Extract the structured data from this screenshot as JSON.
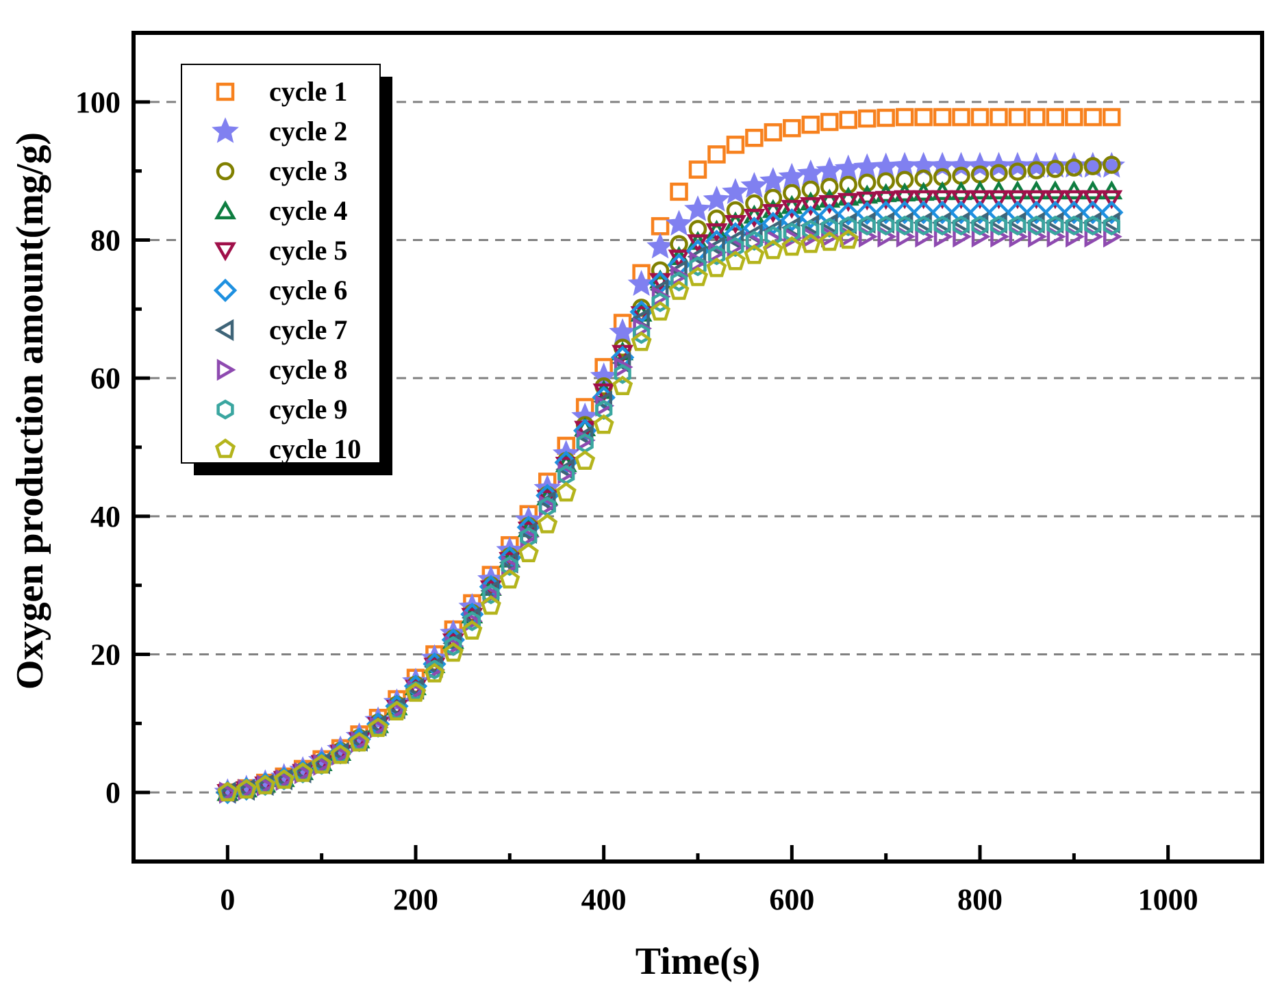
{
  "chart_data": {
    "type": "scatter",
    "title": "",
    "xlabel": "Time(s)",
    "ylabel": "Oxygen production amount(mg/g)",
    "xlim": [
      -100,
      1100
    ],
    "ylim": [
      -10,
      110
    ],
    "xticks": [
      0,
      200,
      400,
      600,
      800,
      1000
    ],
    "yticks": [
      0,
      20,
      40,
      60,
      80,
      100
    ],
    "xtick_labels": [
      "0",
      "200",
      "400",
      "600",
      "800",
      "1000"
    ],
    "ytick_labels": [
      "0",
      "20",
      "40",
      "60",
      "80",
      "100"
    ],
    "grid": "horizontal dashed at y ticks",
    "legend_position": "top-left",
    "x": [
      0,
      20,
      40,
      60,
      80,
      100,
      120,
      140,
      160,
      180,
      200,
      220,
      240,
      260,
      280,
      300,
      320,
      340,
      360,
      380,
      400,
      420,
      440,
      460,
      480,
      500,
      520,
      540,
      560,
      580,
      600,
      620,
      640,
      660,
      680,
      700,
      720,
      740,
      760,
      780,
      800,
      820,
      840,
      860,
      880,
      900,
      920,
      940
    ],
    "series": [
      {
        "name": "cycle 1",
        "marker": "square",
        "color": "#F7811E",
        "values": [
          0,
          0.6,
          1.4,
          2.3,
          3.4,
          4.8,
          6.4,
          8.4,
          10.8,
          13.5,
          16.6,
          20.0,
          23.6,
          27.4,
          31.5,
          35.8,
          40.3,
          45.0,
          50.2,
          55.8,
          61.6,
          68.0,
          75.2,
          82.0,
          87.0,
          90.2,
          92.4,
          93.8,
          94.8,
          95.6,
          96.2,
          96.7,
          97.1,
          97.4,
          97.6,
          97.7,
          97.8,
          97.8,
          97.8,
          97.8,
          97.8,
          97.8,
          97.8,
          97.8,
          97.8,
          97.8,
          97.8,
          97.8
        ]
      },
      {
        "name": "cycle 2",
        "marker": "star",
        "color": "#8080F0",
        "values": [
          0,
          0.5,
          1.3,
          2.2,
          3.2,
          4.6,
          6.2,
          8.1,
          10.4,
          13.0,
          16.0,
          19.4,
          23.0,
          26.8,
          30.8,
          35.0,
          39.4,
          44.0,
          49.0,
          54.4,
          60.2,
          66.6,
          73.6,
          79.0,
          82.3,
          84.4,
          85.8,
          86.9,
          87.8,
          88.5,
          89.1,
          89.6,
          90.0,
          90.3,
          90.5,
          90.6,
          90.7,
          90.7,
          90.7,
          90.7,
          90.7,
          90.7,
          90.7,
          90.7,
          90.7,
          90.7,
          90.7,
          90.7
        ]
      },
      {
        "name": "cycle 3",
        "marker": "circle",
        "color": "#808000",
        "values": [
          0,
          0.5,
          1.2,
          2.1,
          3.1,
          4.4,
          6.0,
          7.9,
          10.1,
          12.7,
          15.6,
          18.8,
          22.3,
          26.0,
          30.0,
          34.2,
          38.6,
          43.1,
          48.0,
          53.2,
          58.8,
          64.4,
          70.2,
          75.6,
          79.4,
          81.6,
          83.1,
          84.3,
          85.3,
          86.1,
          86.8,
          87.3,
          87.7,
          88.0,
          88.3,
          88.5,
          88.7,
          88.9,
          89.1,
          89.3,
          89.5,
          89.7,
          89.9,
          90.1,
          90.3,
          90.5,
          90.7,
          90.9
        ]
      },
      {
        "name": "cycle 4",
        "marker": "triangle-up",
        "color": "#0E7D40",
        "values": [
          0,
          0.5,
          1.2,
          2.0,
          3.0,
          4.3,
          5.8,
          7.6,
          9.8,
          12.4,
          15.3,
          18.5,
          22.0,
          25.7,
          29.7,
          33.8,
          38.2,
          42.8,
          47.6,
          52.8,
          58.2,
          63.8,
          69.4,
          74.2,
          77.6,
          79.8,
          81.4,
          82.6,
          83.6,
          84.4,
          85.0,
          85.5,
          85.9,
          86.2,
          86.5,
          86.7,
          86.8,
          86.9,
          87.0,
          87.0,
          87.1,
          87.1,
          87.1,
          87.1,
          87.1,
          87.1,
          87.1,
          87.1
        ]
      },
      {
        "name": "cycle 5",
        "marker": "triangle-down",
        "color": "#A0104A",
        "values": [
          0,
          0.4,
          1.1,
          1.9,
          2.9,
          4.2,
          5.7,
          7.5,
          9.7,
          12.2,
          15.1,
          18.3,
          21.8,
          25.5,
          29.5,
          33.6,
          38.0,
          42.6,
          47.4,
          52.6,
          58.0,
          63.6,
          69.2,
          74.0,
          77.4,
          79.6,
          81.2,
          82.4,
          83.3,
          84.0,
          84.6,
          85.0,
          85.3,
          85.6,
          85.8,
          85.9,
          86.0,
          86.0,
          86.0,
          86.0,
          86.0,
          86.0,
          86.0,
          86.0,
          86.0,
          86.0,
          86.0,
          86.0
        ]
      },
      {
        "name": "cycle 6",
        "marker": "diamond",
        "color": "#1E90E0",
        "values": [
          0,
          0.5,
          1.2,
          2.0,
          3.0,
          4.3,
          5.8,
          7.7,
          9.9,
          12.5,
          15.4,
          18.6,
          22.1,
          25.8,
          29.8,
          34.0,
          38.4,
          43.0,
          47.8,
          52.4,
          57.2,
          63.0,
          69.6,
          73.8,
          76.4,
          78.4,
          79.8,
          80.9,
          81.7,
          82.4,
          82.9,
          83.3,
          83.6,
          83.8,
          83.9,
          84.0,
          84.0,
          84.0,
          84.0,
          84.0,
          84.0,
          84.0,
          84.0,
          84.0,
          84.0,
          84.0,
          84.0,
          84.0
        ]
      },
      {
        "name": "cycle 7",
        "marker": "triangle-left",
        "color": "#3E6478",
        "values": [
          0,
          0.4,
          1.1,
          1.9,
          2.9,
          4.2,
          5.7,
          7.5,
          9.7,
          12.2,
          15.0,
          18.2,
          21.6,
          25.3,
          29.2,
          33.3,
          37.6,
          42.1,
          46.8,
          51.6,
          56.6,
          62.2,
          68.6,
          72.8,
          75.6,
          77.6,
          79.0,
          80.0,
          80.8,
          81.4,
          81.8,
          82.1,
          82.3,
          82.4,
          82.5,
          82.5,
          82.5,
          82.5,
          82.5,
          82.5,
          82.5,
          82.5,
          82.5,
          82.5,
          82.5,
          82.5,
          82.5,
          82.5
        ]
      },
      {
        "name": "cycle 8",
        "marker": "triangle-right",
        "color": "#8E4AB0",
        "values": [
          0,
          0.4,
          1.0,
          1.8,
          2.8,
          4.0,
          5.5,
          7.3,
          9.4,
          11.9,
          14.7,
          17.8,
          21.2,
          24.8,
          28.7,
          32.8,
          37.0,
          41.5,
          46.2,
          51.0,
          56.0,
          61.6,
          67.2,
          71.8,
          74.8,
          76.8,
          78.2,
          79.1,
          79.7,
          80.1,
          80.3,
          80.4,
          80.5,
          80.5,
          80.5,
          80.5,
          80.5,
          80.5,
          80.5,
          80.5,
          80.5,
          80.5,
          80.5,
          80.5,
          80.5,
          80.5,
          80.5,
          80.5
        ]
      },
      {
        "name": "cycle 9",
        "marker": "hexagon",
        "color": "#3AA6A0",
        "values": [
          0,
          0.4,
          1.0,
          1.8,
          2.8,
          4.0,
          5.5,
          7.3,
          9.4,
          11.9,
          14.7,
          17.8,
          21.2,
          24.8,
          28.7,
          32.8,
          37.0,
          41.4,
          46.0,
          50.6,
          55.4,
          60.6,
          66.4,
          71.0,
          74.0,
          76.2,
          77.8,
          79.0,
          79.9,
          80.6,
          81.1,
          81.5,
          81.8,
          82.0,
          82.1,
          82.1,
          82.1,
          82.1,
          82.1,
          82.1,
          82.1,
          82.1,
          82.1,
          82.1,
          82.1,
          82.1,
          82.1,
          82.1
        ]
      },
      {
        "name": "cycle 10",
        "marker": "pentagon",
        "color": "#B4B41C",
        "values": [
          0,
          0.4,
          1.0,
          1.8,
          2.8,
          4.0,
          5.4,
          7.2,
          9.3,
          11.7,
          14.4,
          17.2,
          20.2,
          23.4,
          27.0,
          30.8,
          34.6,
          38.8,
          43.4,
          48.0,
          53.2,
          58.8,
          65.2,
          69.6,
          72.6,
          74.6,
          75.9,
          76.9,
          77.8,
          78.5,
          79.0,
          79.4,
          79.7,
          80.0,
          null,
          null,
          null,
          null,
          null,
          null,
          null,
          null,
          null,
          null,
          null,
          null,
          null,
          null
        ]
      }
    ]
  }
}
